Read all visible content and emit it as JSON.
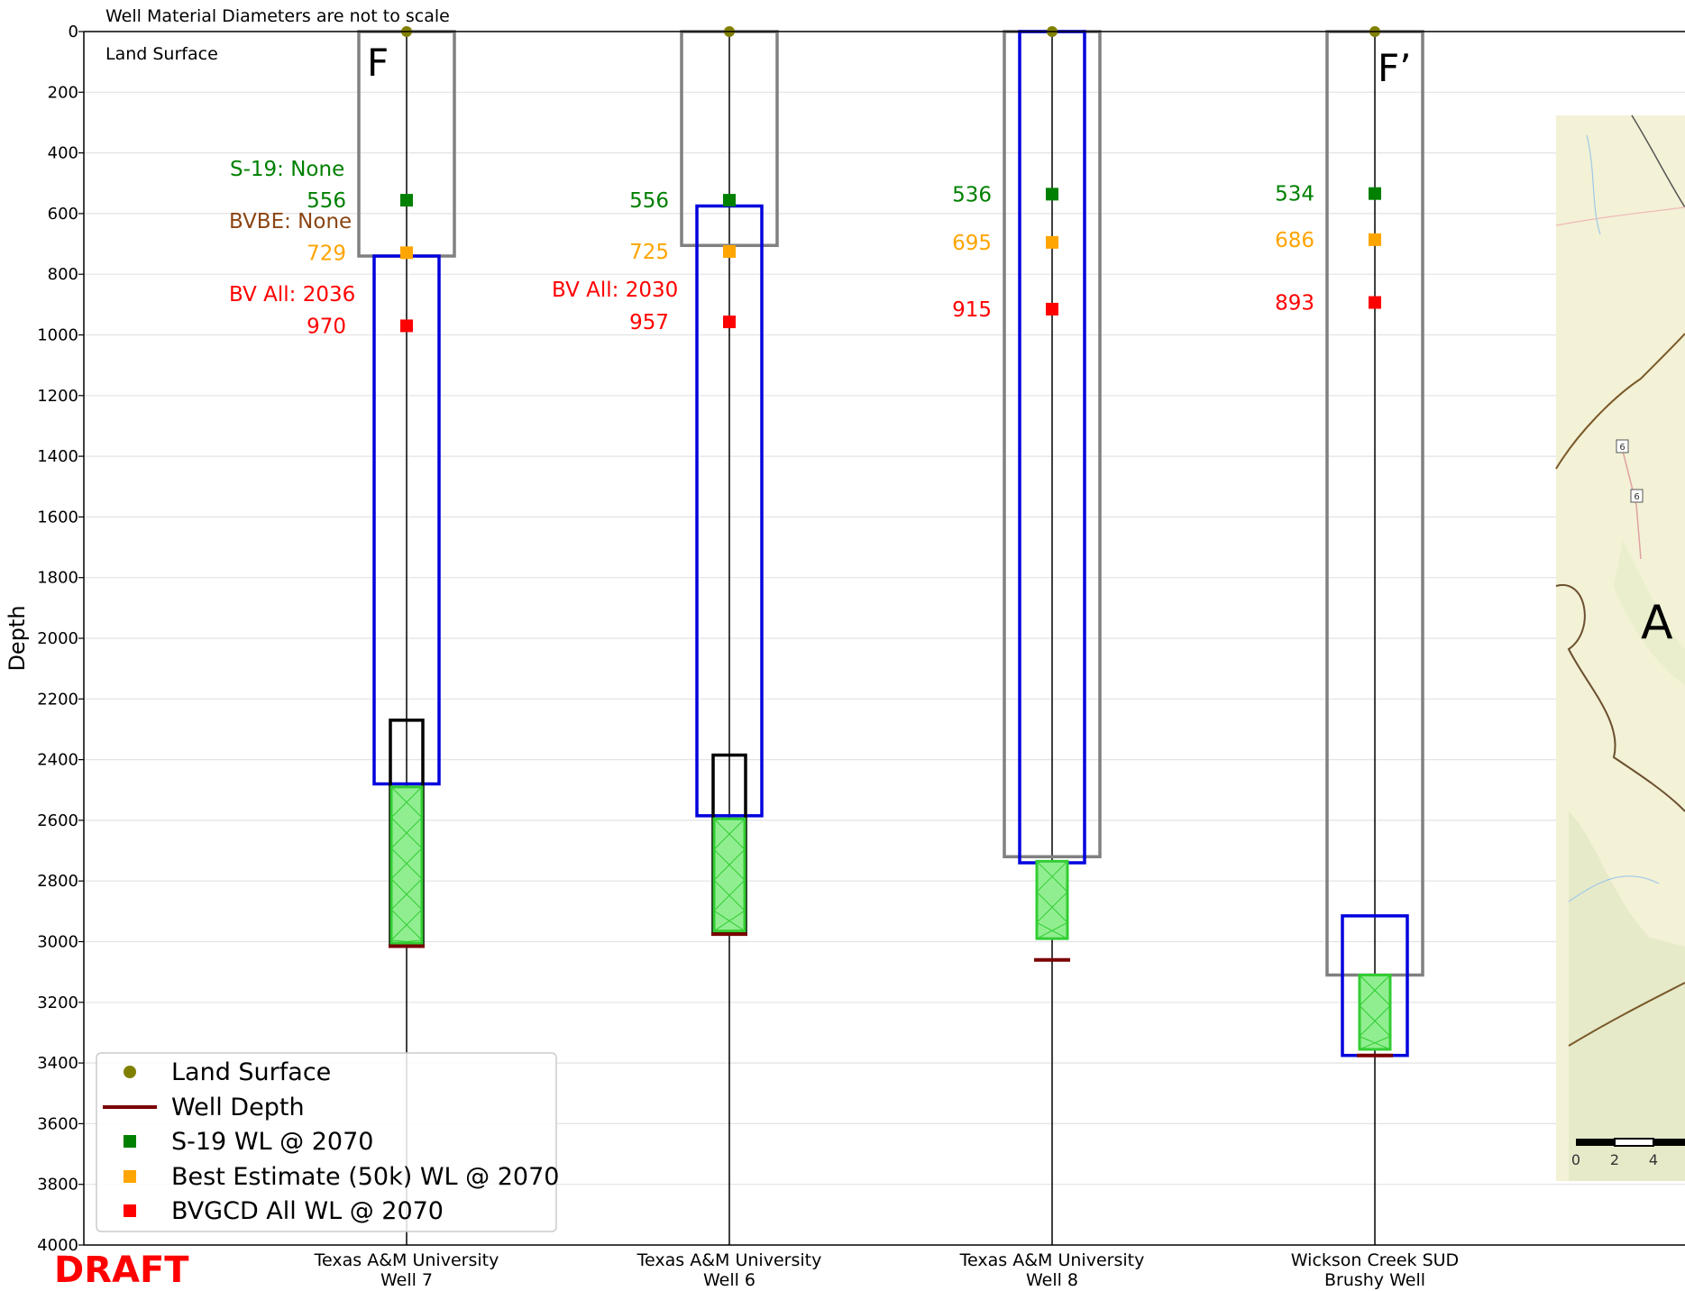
{
  "chart_data": {
    "type": "well-profile",
    "title": "",
    "ylabel": "Depth",
    "ylim": [
      0,
      4000
    ],
    "y_inverted": true,
    "yticks": [
      0,
      200,
      400,
      600,
      800,
      1000,
      1200,
      1400,
      1600,
      1800,
      2000,
      2200,
      2400,
      2600,
      2800,
      3000,
      3200,
      3400,
      3600,
      3800,
      4000
    ],
    "grid": true,
    "note_scale": "Well Material Diameters are not to scale",
    "note_land": "Land Surface",
    "section_start": "F",
    "section_end": "F’",
    "draft_label": "DRAFT",
    "colors": {
      "land_surface": "#808000",
      "well_depth": "#7a0000",
      "s19": "#008000",
      "best_estimate": "#ffa500",
      "bvgcd": "#ff0000",
      "bvbe_text": "#8b4513",
      "casing_outer": "#808080",
      "casing_inner": "#0000dd",
      "screen_fill": "#90ee90",
      "screen_edge": "#32cd32"
    },
    "wells": [
      {
        "name_line1": "Texas A&M University",
        "name_line2": "Well 7",
        "land_surface": 0,
        "well_depth": 3015,
        "s19_wl": 556,
        "s19_label": "556",
        "best_estimate_wl": 729,
        "best_estimate_label": "729",
        "bvgcd_wl": 970,
        "bvgcd_label": "970",
        "outer_casing": [
          0,
          740
        ],
        "inner_casing": [
          740,
          2480
        ],
        "black_casing": [
          2270,
          3010
        ],
        "screen": [
          2490,
          3005
        ],
        "annotations": [
          {
            "text": "S-19: None",
            "kind": "s19"
          },
          {
            "text": "BVBE: None",
            "kind": "bvbe"
          },
          {
            "text": "BV All: 2036",
            "kind": "bv"
          }
        ]
      },
      {
        "name_line1": "Texas A&M University",
        "name_line2": "Well 6",
        "land_surface": 0,
        "well_depth": 2975,
        "s19_wl": 556,
        "s19_label": "556",
        "best_estimate_wl": 725,
        "best_estimate_label": "725",
        "bvgcd_wl": 957,
        "bvgcd_label": "957",
        "outer_casing": [
          0,
          705
        ],
        "inner_casing": [
          575,
          2585
        ],
        "black_casing": [
          2385,
          2970
        ],
        "screen": [
          2595,
          2965
        ],
        "annotations": [
          {
            "text": "BV All: 2030",
            "kind": "bv"
          }
        ]
      },
      {
        "name_line1": "Texas A&M University",
        "name_line2": "Well 8",
        "land_surface": 0,
        "well_depth": 3060,
        "s19_wl": 536,
        "s19_label": "536",
        "best_estimate_wl": 695,
        "best_estimate_label": "695",
        "bvgcd_wl": 915,
        "bvgcd_label": "915",
        "outer_casing": [
          0,
          2720
        ],
        "inner_casing": [
          0,
          2740
        ],
        "black_casing": null,
        "screen": [
          2735,
          2990
        ],
        "annotations": []
      },
      {
        "name_line1": "Wickson Creek SUD",
        "name_line2": "Brushy Well",
        "land_surface": 0,
        "well_depth": 3375,
        "s19_wl": 534,
        "s19_label": "534",
        "best_estimate_wl": 686,
        "best_estimate_label": "686",
        "bvgcd_wl": 893,
        "bvgcd_label": "893",
        "outer_casing": [
          0,
          3110
        ],
        "inner_casing": [
          2915,
          3375
        ],
        "black_casing": null,
        "screen": [
          3110,
          3355
        ],
        "annotations": []
      }
    ],
    "legend": {
      "position": "lower-left",
      "entries": [
        {
          "label": "Land Surface",
          "kind": "land_surface"
        },
        {
          "label": "Well Depth",
          "kind": "well_depth"
        },
        {
          "label": "S-19 WL @ 2070",
          "kind": "s19"
        },
        {
          "label": "Best Estimate (50k) WL @ 2070",
          "kind": "best_estimate"
        },
        {
          "label": "BVGCD All WL @ 2070",
          "kind": "bvgcd"
        }
      ]
    },
    "map_inset": {
      "position": "right",
      "label": "A",
      "road_shields": [
        "6",
        "6"
      ],
      "scale_ticks": [
        "0",
        "2",
        "4"
      ]
    }
  }
}
